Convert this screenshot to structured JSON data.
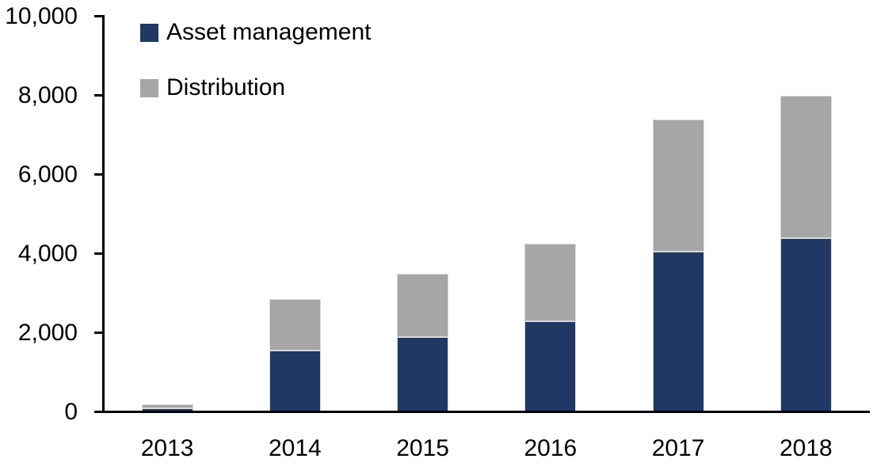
{
  "chart_data": {
    "type": "bar",
    "stacked": true,
    "title": "",
    "xlabel": "",
    "ylabel": "",
    "categories": [
      "2013",
      "2014",
      "2015",
      "2016",
      "2017",
      "2018"
    ],
    "series": [
      {
        "name": "Asset management",
        "color": "#1f3864",
        "values": [
          100,
          1550,
          1900,
          2300,
          4050,
          4400
        ]
      },
      {
        "name": "Distribution",
        "color": "#a6a6a6",
        "values": [
          100,
          1300,
          1600,
          1950,
          3350,
          3600
        ]
      }
    ],
    "stacked_totals": [
      200,
      2850,
      3500,
      4250,
      7400,
      8000
    ],
    "ylim": [
      0,
      10000
    ],
    "y_ticks": [
      {
        "value": 0,
        "label": "0"
      },
      {
        "value": 2000,
        "label": "2,000"
      },
      {
        "value": 4000,
        "label": "4,000"
      },
      {
        "value": 6000,
        "label": "6,000"
      },
      {
        "value": 8000,
        "label": "8,000"
      },
      {
        "value": 10000,
        "label": "10,000"
      }
    ],
    "legend_position": "top-left",
    "grid": false,
    "axis_color": "#000000",
    "text_color": "#000000",
    "background": "#ffffff"
  }
}
